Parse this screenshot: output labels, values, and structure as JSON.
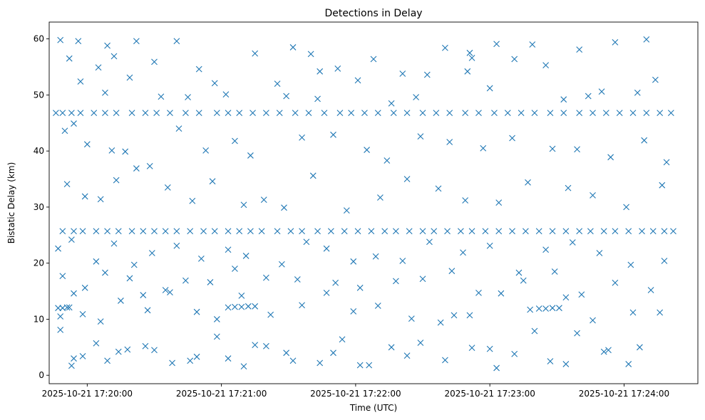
{
  "chart_data": {
    "type": "scatter",
    "title": "Detections in Delay",
    "xlabel": "Time (UTC)",
    "ylabel": "Bistatic Delay (km)",
    "x_ticks": [
      "2025-10-21 17:20:00",
      "2025-10-21 17:21:00",
      "2025-10-21 17:22:00",
      "2025-10-21 17:23:00",
      "2025-10-21 17:24:00"
    ],
    "x_tick_seconds": [
      0,
      60,
      120,
      180,
      240
    ],
    "y_ticks": [
      0,
      10,
      20,
      30,
      40,
      50,
      60
    ],
    "xlim_seconds": [
      -17,
      273
    ],
    "ylim": [
      -1.5,
      63
    ],
    "marker": "x",
    "color": "#1f77b4",
    "grid": false,
    "bands": [
      {
        "y": 46.8,
        "x_start": -15,
        "x_end": 262,
        "note": "dense track"
      },
      {
        "y": 25.7,
        "x_start": -12,
        "x_end": 263,
        "note": "dense track"
      },
      {
        "y": 12.0,
        "x_start": -14,
        "x_end": -7,
        "note": "short track"
      },
      {
        "y": 12.2,
        "x_start": 62,
        "x_end": 77,
        "note": "short track"
      },
      {
        "y": 11.9,
        "x_start": 201,
        "x_end": 212,
        "note": "short track"
      }
    ],
    "points": [
      [
        -14,
        46.8
      ],
      [
        -11,
        46.8
      ],
      [
        -7,
        46.8
      ],
      [
        -3,
        46.8
      ],
      [
        3,
        46.8
      ],
      [
        8,
        46.8
      ],
      [
        13,
        46.8
      ],
      [
        20,
        46.8
      ],
      [
        26,
        46.8
      ],
      [
        31,
        46.8
      ],
      [
        37,
        46.8
      ],
      [
        44,
        46.8
      ],
      [
        50,
        46.8
      ],
      [
        58,
        46.8
      ],
      [
        63,
        46.8
      ],
      [
        68,
        46.8
      ],
      [
        74,
        46.8
      ],
      [
        80,
        46.8
      ],
      [
        86,
        46.8
      ],
      [
        93,
        46.8
      ],
      [
        99,
        46.8
      ],
      [
        106,
        46.8
      ],
      [
        113,
        46.8
      ],
      [
        118,
        46.8
      ],
      [
        124,
        46.8
      ],
      [
        130,
        46.8
      ],
      [
        137,
        46.8
      ],
      [
        143,
        46.8
      ],
      [
        150,
        46.8
      ],
      [
        156,
        46.8
      ],
      [
        162,
        46.8
      ],
      [
        169,
        46.8
      ],
      [
        175,
        46.8
      ],
      [
        182,
        46.8
      ],
      [
        188,
        46.8
      ],
      [
        194,
        46.8
      ],
      [
        200,
        46.8
      ],
      [
        207,
        46.8
      ],
      [
        213,
        46.8
      ],
      [
        220,
        46.8
      ],
      [
        226,
        46.8
      ],
      [
        232,
        46.8
      ],
      [
        238,
        46.8
      ],
      [
        244,
        46.8
      ],
      [
        250,
        46.8
      ],
      [
        256,
        46.8
      ],
      [
        261,
        46.8
      ],
      [
        -11,
        25.7
      ],
      [
        -6,
        25.7
      ],
      [
        -2,
        25.7
      ],
      [
        4,
        25.7
      ],
      [
        9,
        25.7
      ],
      [
        14,
        25.7
      ],
      [
        20,
        25.7
      ],
      [
        25,
        25.7
      ],
      [
        30,
        25.7
      ],
      [
        35,
        25.7
      ],
      [
        40,
        25.7
      ],
      [
        46,
        25.7
      ],
      [
        52,
        25.7
      ],
      [
        57,
        25.7
      ],
      [
        63,
        25.7
      ],
      [
        68,
        25.7
      ],
      [
        73,
        25.7
      ],
      [
        78,
        25.7
      ],
      [
        85,
        25.7
      ],
      [
        91,
        25.7
      ],
      [
        96,
        25.7
      ],
      [
        103,
        25.7
      ],
      [
        109,
        25.7
      ],
      [
        115,
        25.7
      ],
      [
        121,
        25.7
      ],
      [
        127,
        25.7
      ],
      [
        133,
        25.7
      ],
      [
        138,
        25.7
      ],
      [
        144,
        25.7
      ],
      [
        150,
        25.7
      ],
      [
        155,
        25.7
      ],
      [
        161,
        25.7
      ],
      [
        167,
        25.7
      ],
      [
        172,
        25.7
      ],
      [
        178,
        25.7
      ],
      [
        184,
        25.7
      ],
      [
        190,
        25.7
      ],
      [
        196,
        25.7
      ],
      [
        202,
        25.7
      ],
      [
        208,
        25.7
      ],
      [
        214,
        25.7
      ],
      [
        220,
        25.7
      ],
      [
        225,
        25.7
      ],
      [
        231,
        25.7
      ],
      [
        236,
        25.7
      ],
      [
        242,
        25.7
      ],
      [
        248,
        25.7
      ],
      [
        253,
        25.7
      ],
      [
        258,
        25.7
      ],
      [
        262,
        25.7
      ],
      [
        -13,
        12.0
      ],
      [
        -11,
        12.0
      ],
      [
        -9,
        12.1
      ],
      [
        -8,
        12.1
      ],
      [
        63,
        12.1
      ],
      [
        66,
        12.2
      ],
      [
        69,
        12.2
      ],
      [
        72,
        12.3
      ],
      [
        75,
        12.3
      ],
      [
        202,
        11.9
      ],
      [
        205,
        11.9
      ],
      [
        208,
        12.0
      ],
      [
        211,
        12.0
      ],
      [
        -12,
        59.8
      ],
      [
        -4,
        59.6
      ],
      [
        9,
        58.8
      ],
      [
        22,
        59.6
      ],
      [
        40,
        59.6
      ],
      [
        75,
        57.4
      ],
      [
        92,
        58.5
      ],
      [
        100,
        57.3
      ],
      [
        128,
        56.4
      ],
      [
        160,
        58.4
      ],
      [
        171,
        57.5
      ],
      [
        183,
        59.1
      ],
      [
        199,
        59.0
      ],
      [
        220,
        58.1
      ],
      [
        236,
        59.4
      ],
      [
        250,
        59.9
      ],
      [
        -8,
        56.5
      ],
      [
        5,
        54.9
      ],
      [
        12,
        56.9
      ],
      [
        30,
        55.9
      ],
      [
        50,
        54.6
      ],
      [
        57,
        52.1
      ],
      [
        85,
        52.0
      ],
      [
        104,
        54.2
      ],
      [
        112,
        54.7
      ],
      [
        141,
        53.8
      ],
      [
        152,
        53.6
      ],
      [
        172,
        56.6
      ],
      [
        191,
        56.4
      ],
      [
        205,
        55.3
      ],
      [
        230,
        50.6
      ],
      [
        254,
        52.7
      ],
      [
        -3,
        52.4
      ],
      [
        8,
        50.4
      ],
      [
        19,
        53.1
      ],
      [
        33,
        49.7
      ],
      [
        45,
        49.6
      ],
      [
        62,
        50.1
      ],
      [
        89,
        49.8
      ],
      [
        103,
        49.3
      ],
      [
        121,
        52.6
      ],
      [
        136,
        48.5
      ],
      [
        147,
        49.6
      ],
      [
        170,
        54.2
      ],
      [
        180,
        51.2
      ],
      [
        213,
        49.2
      ],
      [
        224,
        49.8
      ],
      [
        246,
        50.4
      ],
      [
        -10,
        43.6
      ],
      [
        -6,
        44.9
      ],
      [
        0,
        41.2
      ],
      [
        11,
        40.1
      ],
      [
        17,
        39.9
      ],
      [
        28,
        37.3
      ],
      [
        41,
        44.0
      ],
      [
        53,
        40.1
      ],
      [
        66,
        41.8
      ],
      [
        73,
        39.2
      ],
      [
        96,
        42.4
      ],
      [
        110,
        42.9
      ],
      [
        125,
        40.2
      ],
      [
        134,
        38.3
      ],
      [
        149,
        42.6
      ],
      [
        162,
        41.6
      ],
      [
        177,
        40.5
      ],
      [
        190,
        42.3
      ],
      [
        208,
        40.4
      ],
      [
        219,
        40.3
      ],
      [
        234,
        38.9
      ],
      [
        249,
        41.9
      ],
      [
        259,
        38.0
      ],
      [
        -9,
        34.1
      ],
      [
        -1,
        31.9
      ],
      [
        6,
        31.4
      ],
      [
        13,
        34.8
      ],
      [
        22,
        36.9
      ],
      [
        36,
        33.5
      ],
      [
        47,
        31.1
      ],
      [
        56,
        34.6
      ],
      [
        70,
        30.4
      ],
      [
        79,
        31.3
      ],
      [
        88,
        29.9
      ],
      [
        101,
        35.6
      ],
      [
        116,
        29.4
      ],
      [
        131,
        31.7
      ],
      [
        143,
        35.0
      ],
      [
        157,
        33.3
      ],
      [
        169,
        31.2
      ],
      [
        184,
        30.8
      ],
      [
        197,
        34.4
      ],
      [
        215,
        33.4
      ],
      [
        226,
        32.1
      ],
      [
        241,
        30.0
      ],
      [
        257,
        33.9
      ],
      [
        -13,
        22.6
      ],
      [
        -7,
        24.2
      ],
      [
        4,
        20.3
      ],
      [
        12,
        23.5
      ],
      [
        21,
        19.7
      ],
      [
        29,
        21.8
      ],
      [
        40,
        23.1
      ],
      [
        51,
        20.8
      ],
      [
        63,
        22.4
      ],
      [
        71,
        21.3
      ],
      [
        87,
        19.8
      ],
      [
        98,
        23.8
      ],
      [
        107,
        22.6
      ],
      [
        119,
        20.3
      ],
      [
        129,
        21.2
      ],
      [
        141,
        20.4
      ],
      [
        153,
        23.8
      ],
      [
        168,
        21.9
      ],
      [
        180,
        23.1
      ],
      [
        193,
        18.3
      ],
      [
        205,
        22.4
      ],
      [
        217,
        23.7
      ],
      [
        229,
        21.8
      ],
      [
        243,
        19.7
      ],
      [
        258,
        20.4
      ],
      [
        -11,
        17.7
      ],
      [
        -6,
        14.6
      ],
      [
        -1,
        15.6
      ],
      [
        8,
        18.3
      ],
      [
        19,
        17.3
      ],
      [
        25,
        14.3
      ],
      [
        35,
        15.2
      ],
      [
        44,
        16.9
      ],
      [
        55,
        16.6
      ],
      [
        66,
        19.0
      ],
      [
        80,
        17.4
      ],
      [
        94,
        17.1
      ],
      [
        111,
        16.5
      ],
      [
        122,
        15.6
      ],
      [
        138,
        16.8
      ],
      [
        150,
        17.2
      ],
      [
        163,
        18.6
      ],
      [
        175,
        14.7
      ],
      [
        195,
        16.9
      ],
      [
        209,
        18.5
      ],
      [
        221,
        14.4
      ],
      [
        236,
        16.5
      ],
      [
        252,
        15.2
      ],
      [
        -12,
        10.5
      ],
      [
        -2,
        10.9
      ],
      [
        6,
        9.6
      ],
      [
        15,
        13.3
      ],
      [
        27,
        11.6
      ],
      [
        37,
        14.8
      ],
      [
        49,
        11.3
      ],
      [
        58,
        10.0
      ],
      [
        69,
        14.2
      ],
      [
        82,
        10.8
      ],
      [
        96,
        12.5
      ],
      [
        107,
        14.7
      ],
      [
        119,
        11.4
      ],
      [
        130,
        12.4
      ],
      [
        145,
        10.1
      ],
      [
        158,
        9.4
      ],
      [
        171,
        10.7
      ],
      [
        185,
        14.6
      ],
      [
        198,
        11.7
      ],
      [
        214,
        13.9
      ],
      [
        226,
        9.8
      ],
      [
        244,
        11.2
      ],
      [
        256,
        11.2
      ],
      [
        -12,
        8.1
      ],
      [
        -6,
        3.0
      ],
      [
        -2,
        3.4
      ],
      [
        9,
        2.6
      ],
      [
        18,
        4.6
      ],
      [
        26,
        5.2
      ],
      [
        38,
        2.2
      ],
      [
        49,
        3.3
      ],
      [
        58,
        6.9
      ],
      [
        70,
        1.6
      ],
      [
        80,
        5.2
      ],
      [
        89,
        4.0
      ],
      [
        104,
        2.2
      ],
      [
        114,
        6.4
      ],
      [
        126,
        1.8
      ],
      [
        136,
        5.0
      ],
      [
        149,
        5.8
      ],
      [
        160,
        2.7
      ],
      [
        172,
        4.9
      ],
      [
        183,
        1.3
      ],
      [
        191,
        3.8
      ],
      [
        207,
        2.5
      ],
      [
        219,
        7.5
      ],
      [
        233,
        4.5
      ],
      [
        247,
        5.0
      ],
      [
        -7,
        1.7
      ],
      [
        4,
        5.7
      ],
      [
        14,
        4.2
      ],
      [
        30,
        4.5
      ],
      [
        46,
        2.6
      ],
      [
        63,
        3.0
      ],
      [
        75,
        5.4
      ],
      [
        92,
        2.6
      ],
      [
        110,
        4.0
      ],
      [
        122,
        1.8
      ],
      [
        143,
        3.5
      ],
      [
        164,
        10.7
      ],
      [
        180,
        4.7
      ],
      [
        200,
        7.9
      ],
      [
        214,
        2.0
      ],
      [
        231,
        4.2
      ],
      [
        242,
        2.0
      ]
    ]
  }
}
